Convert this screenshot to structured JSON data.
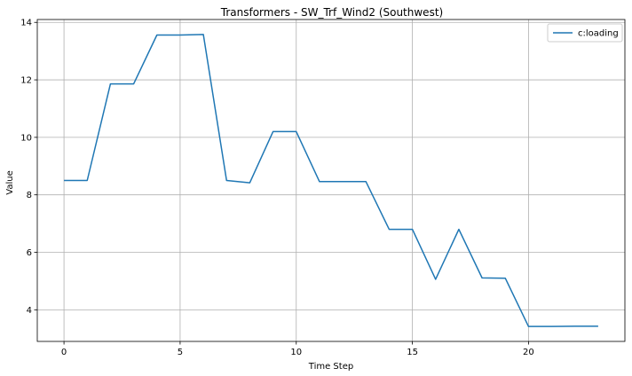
{
  "chart_data": {
    "type": "line",
    "title": "Transformers - SW_Trf_Wind2 (Southwest)",
    "xlabel": "Time Step",
    "ylabel": "Value",
    "xlim": [
      -1.15,
      24.15
    ],
    "ylim": [
      2.9,
      14.1
    ],
    "xticks": [
      0,
      5,
      10,
      15,
      20
    ],
    "yticks": [
      4,
      6,
      8,
      10,
      12,
      14
    ],
    "grid": true,
    "legend_position": "top-right",
    "x": [
      0,
      1,
      2,
      3,
      4,
      5,
      6,
      7,
      8,
      9,
      10,
      11,
      12,
      13,
      14,
      15,
      16,
      17,
      18,
      19,
      20,
      21,
      22,
      23
    ],
    "series": [
      {
        "name": "c:loading",
        "color": "#1f77b4",
        "values": [
          8.5,
          8.5,
          11.86,
          11.86,
          13.56,
          13.56,
          13.58,
          8.5,
          8.42,
          10.2,
          10.2,
          8.46,
          8.46,
          8.46,
          6.8,
          6.8,
          5.06,
          6.8,
          5.11,
          5.1,
          3.42,
          3.42,
          3.43,
          3.43
        ]
      }
    ]
  }
}
